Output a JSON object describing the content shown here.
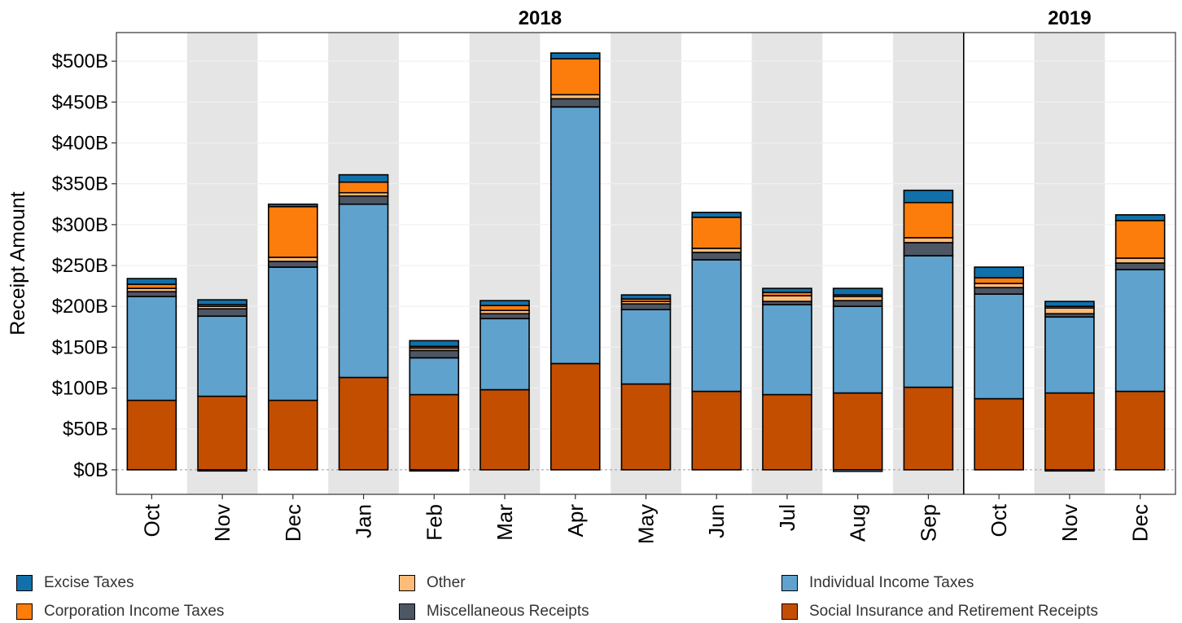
{
  "chart_data": {
    "type": "bar",
    "stacked": true,
    "ylabel": "Receipt Amount",
    "xlabel": "",
    "ylim": [
      -30,
      535
    ],
    "y_ticks": [
      0,
      50,
      100,
      150,
      200,
      250,
      300,
      350,
      400,
      450,
      500
    ],
    "y_tick_labels": [
      "$0B",
      "$50B",
      "$100B",
      "$150B",
      "$200B",
      "$250B",
      "$300B",
      "$350B",
      "$400B",
      "$450B",
      "$500B"
    ],
    "categories": [
      "Oct",
      "Nov",
      "Dec",
      "Jan",
      "Feb",
      "Mar",
      "Apr",
      "May",
      "Jun",
      "Jul",
      "Aug",
      "Sep",
      "Oct",
      "Nov",
      "Dec"
    ],
    "year_groups": [
      {
        "label": "2018",
        "start": 0,
        "end": 11
      },
      {
        "label": "2019",
        "start": 12,
        "end": 14
      }
    ],
    "grid": true,
    "alternating_bands": true,
    "legend_position": "bottom",
    "series": [
      {
        "name": "Social Insurance and Retirement Receipts",
        "color": "#C44E00",
        "values": [
          85,
          90,
          85,
          113,
          92,
          98,
          130,
          105,
          96,
          92,
          94,
          101,
          87,
          94,
          96
        ]
      },
      {
        "name": "Individual Income Taxes",
        "color": "#5FA2CE",
        "values": [
          127,
          98,
          163,
          212,
          45,
          87,
          314,
          91,
          161,
          110,
          106,
          161,
          128,
          93,
          149
        ]
      },
      {
        "name": "Miscellaneous Receipts",
        "color": "#4E5664",
        "values": [
          6,
          9,
          7,
          10,
          9,
          6,
          10,
          7,
          9,
          4,
          7,
          16,
          8,
          4,
          8
        ]
      },
      {
        "name": "Other",
        "color": "#FFBC79",
        "values": [
          4,
          3,
          5,
          4,
          3,
          4,
          5,
          3,
          5,
          7,
          5,
          6,
          5,
          7,
          6
        ]
      },
      {
        "name": "Corporation Income Taxes",
        "color": "#FC7D0B",
        "values": [
          5,
          2,
          62,
          13,
          2,
          6,
          44,
          3,
          38,
          4,
          2,
          43,
          7,
          2,
          46
        ]
      },
      {
        "name": "Excise Taxes",
        "color": "#1170AA",
        "values": [
          7,
          6,
          3,
          9,
          7,
          6,
          7,
          5,
          6,
          5,
          8,
          15,
          13,
          6,
          7
        ]
      }
    ],
    "negative_values": [
      {
        "name": "Individual Income Taxes",
        "values": [
          0,
          -1,
          0,
          0,
          -1,
          0,
          0,
          0,
          0,
          0,
          -2,
          0,
          0,
          -1,
          0
        ]
      }
    ]
  },
  "legend": [
    {
      "label": "Excise Taxes",
      "color": "#1170AA"
    },
    {
      "label": "Other",
      "color": "#FFBC79"
    },
    {
      "label": "Individual Income Taxes",
      "color": "#5FA2CE"
    },
    {
      "label": "Corporation Income Taxes",
      "color": "#FC7D0B"
    },
    {
      "label": "Miscellaneous Receipts",
      "color": "#4E5664"
    },
    {
      "label": "Social Insurance and Retirement Receipts",
      "color": "#C44E00"
    }
  ]
}
